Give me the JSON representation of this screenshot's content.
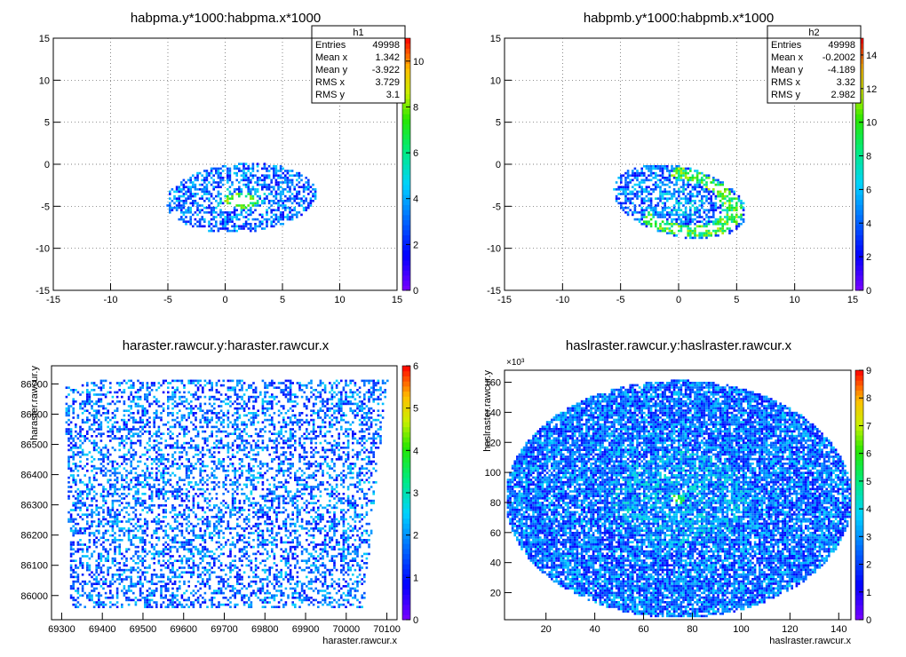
{
  "chart_data": [
    {
      "type": "heatmap",
      "title": "habpma.y*1000:habpma.x*1000",
      "xlabel": "",
      "ylabel": "",
      "xlim": [
        -15,
        15
      ],
      "ylim": [
        -15,
        15
      ],
      "x_ticks": [
        -15,
        -10,
        -5,
        0,
        5,
        10,
        15
      ],
      "y_ticks": [
        -15,
        -10,
        -5,
        0,
        5,
        10,
        15
      ],
      "y_exponent": "",
      "grid": true,
      "z_max": 11,
      "z_ticks": [
        0,
        2,
        4,
        6,
        8,
        10
      ],
      "stats": {
        "name": "h1",
        "rows": [
          {
            "label": "Entries",
            "value": "49998"
          },
          {
            "label": "Mean x",
            "value": "1.342"
          },
          {
            "label": "Mean y",
            "value": "-3.922"
          },
          {
            "label": "RMS x",
            "value": "3.729"
          },
          {
            "label": "RMS y",
            "value": "3.1"
          }
        ]
      },
      "distribution": {
        "shape": "ellipse",
        "center": [
          1.3,
          -3.9
        ],
        "radii": [
          6.6,
          4.1
        ],
        "tilt_deg": 8,
        "hole": [
          1.3,
          -4.2
        ],
        "density": 0.55
      }
    },
    {
      "type": "heatmap",
      "title": "habpmb.y*1000:habpmb.x*1000",
      "xlabel": "",
      "ylabel": "",
      "xlim": [
        -15,
        15
      ],
      "ylim": [
        -15,
        15
      ],
      "x_ticks": [
        -15,
        -10,
        -5,
        0,
        5,
        10,
        15
      ],
      "y_ticks": [
        -15,
        -10,
        -5,
        0,
        5,
        10,
        15
      ],
      "y_exponent": "",
      "grid": true,
      "z_max": 15,
      "z_ticks": [
        0,
        2,
        4,
        6,
        8,
        10,
        12,
        14
      ],
      "stats": {
        "name": "h2",
        "rows": [
          {
            "label": "Entries",
            "value": "49998"
          },
          {
            "label": "Mean x",
            "value": "-0.2002"
          },
          {
            "label": "Mean y",
            "value": "-4.189"
          },
          {
            "label": "RMS x",
            "value": "3.32"
          },
          {
            "label": "RMS y",
            "value": "2.982"
          }
        ]
      },
      "distribution": {
        "shape": "ellipse",
        "center": [
          0,
          -4.3
        ],
        "radii": [
          6.0,
          4.0
        ],
        "tilt_deg": -25,
        "hole": null,
        "density": 0.6
      }
    },
    {
      "type": "heatmap",
      "title": "haraster.rawcur.y:haraster.rawcur.x",
      "xlabel": "haraster.rawcur.x",
      "ylabel": "haraster.rawcur.y",
      "xlim": [
        69275,
        70125
      ],
      "ylim": [
        85920,
        86760
      ],
      "x_ticks": [
        69300,
        69400,
        69500,
        69600,
        69700,
        69800,
        69900,
        70000,
        70100
      ],
      "y_ticks": [
        86000,
        86100,
        86200,
        86300,
        86400,
        86500,
        86600,
        86700
      ],
      "y_exponent": "",
      "grid": false,
      "z_max": 6,
      "z_ticks": [
        0,
        1,
        2,
        3,
        4,
        5,
        6
      ],
      "stats": null,
      "distribution": {
        "shape": "box",
        "x_range": [
          69320,
          70100
        ],
        "y_range": [
          85960,
          86720
        ],
        "density": 0.4
      }
    },
    {
      "type": "heatmap",
      "title": "haslraster.rawcur.y:haslraster.rawcur.x",
      "xlabel": "haslraster.rawcur.x",
      "ylabel": "haslraster.rawcur.y",
      "xlim": [
        3,
        145
      ],
      "ylim": [
        2,
        168
      ],
      "x_ticks": [
        20,
        40,
        60,
        80,
        100,
        120,
        140
      ],
      "y_ticks": [
        20,
        40,
        60,
        80,
        100,
        120,
        140,
        160
      ],
      "y_exponent": "×10³",
      "grid": false,
      "z_max": 9,
      "z_ticks": [
        0,
        1,
        2,
        3,
        4,
        5,
        6,
        7,
        8,
        9
      ],
      "stats": null,
      "distribution": {
        "shape": "ellipse",
        "center": [
          74,
          83
        ],
        "radii": [
          71,
          79
        ],
        "tilt_deg": 0,
        "hole": null,
        "density": 0.85
      }
    }
  ]
}
